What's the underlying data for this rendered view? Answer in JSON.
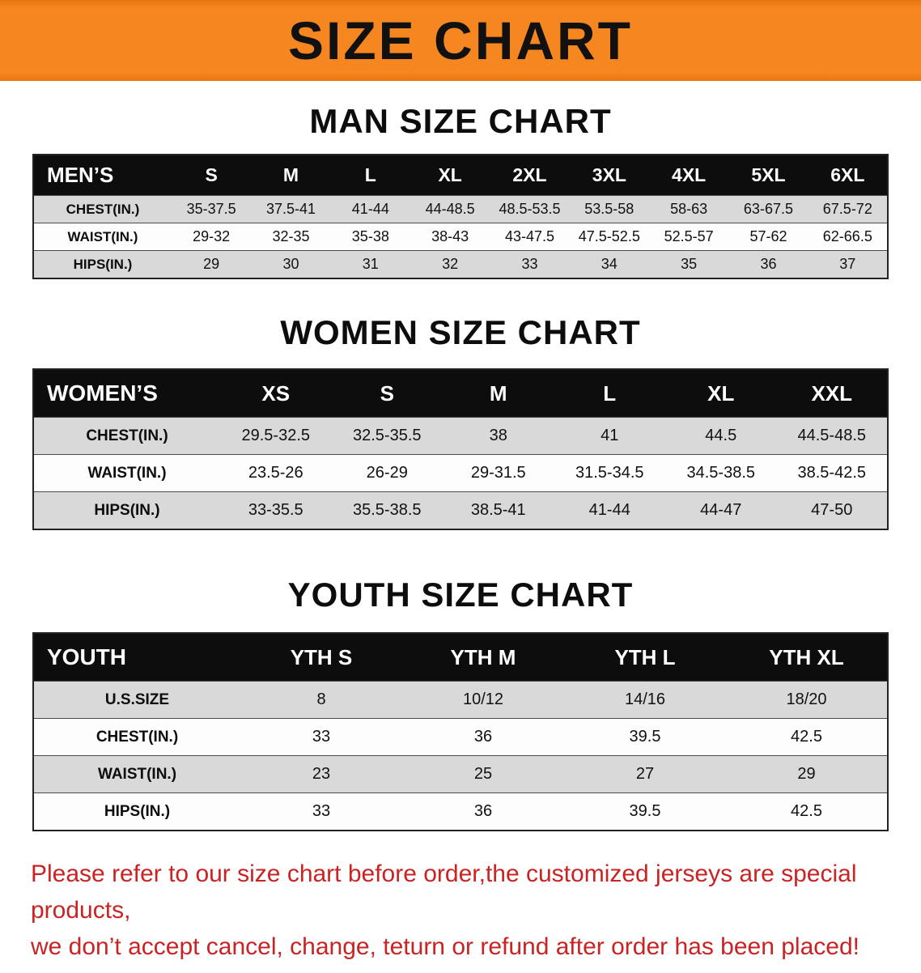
{
  "banner": {
    "title": "SIZE CHART",
    "background_color": "#f6861f"
  },
  "men": {
    "heading": "MAN SIZE CHART",
    "table": {
      "header": [
        "MEN’S",
        "S",
        "M",
        "L",
        "XL",
        "2XL",
        "3XL",
        "4XL",
        "5XL",
        "6XL"
      ],
      "rows": [
        [
          "CHEST(IN.)",
          "35-37.5",
          "37.5-41",
          "41-44",
          "44-48.5",
          "48.5-53.5",
          "53.5-58",
          "58-63",
          "63-67.5",
          "67.5-72"
        ],
        [
          "WAIST(IN.)",
          "29-32",
          "32-35",
          "35-38",
          "38-43",
          "43-47.5",
          "47.5-52.5",
          "52.5-57",
          "57-62",
          "62-66.5"
        ],
        [
          "HIPS(IN.)",
          "29",
          "30",
          "31",
          "32",
          "33",
          "34",
          "35",
          "36",
          "37"
        ]
      ]
    }
  },
  "women": {
    "heading": "WOMEN SIZE CHART",
    "table": {
      "header": [
        "WOMEN’S",
        "XS",
        "S",
        "M",
        "L",
        "XL",
        "XXL"
      ],
      "rows": [
        [
          "CHEST(IN.)",
          "29.5-32.5",
          "32.5-35.5",
          "38",
          "41",
          "44.5",
          "44.5-48.5"
        ],
        [
          "WAIST(IN.)",
          "23.5-26",
          "26-29",
          "29-31.5",
          "31.5-34.5",
          "34.5-38.5",
          "38.5-42.5"
        ],
        [
          "HIPS(IN.)",
          "33-35.5",
          "35.5-38.5",
          "38.5-41",
          "41-44",
          "44-47",
          "47-50"
        ]
      ]
    }
  },
  "youth": {
    "heading": "YOUTH SIZE CHART",
    "table": {
      "header": [
        "YOUTH",
        "YTH S",
        "YTH M",
        "YTH L",
        "YTH XL"
      ],
      "rows": [
        [
          "U.S.SIZE",
          "8",
          "10/12",
          "14/16",
          "18/20"
        ],
        [
          "CHEST(IN.)",
          "33",
          "36",
          "39.5",
          "42.5"
        ],
        [
          "WAIST(IN.)",
          "23",
          "25",
          "27",
          "29"
        ],
        [
          "HIPS(IN.)",
          "33",
          "36",
          "39.5",
          "42.5"
        ]
      ]
    }
  },
  "footer": {
    "line1": "Please refer to our size chart before order,the customized jerseys are special products,",
    "line2": "we don’t accept cancel, change, teturn or refund after order has been placed!",
    "text_color": "#c92323"
  }
}
